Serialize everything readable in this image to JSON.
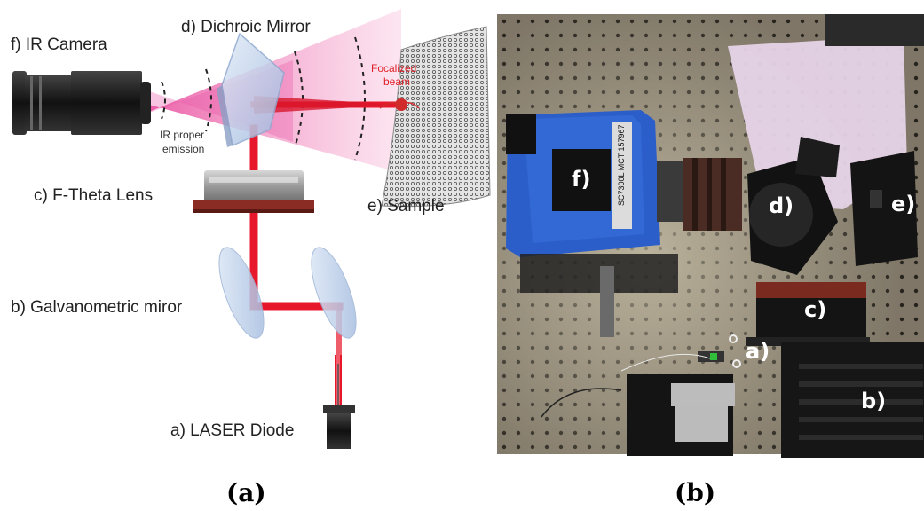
{
  "panel_a": {
    "labels": {
      "camera": "f) IR Camera",
      "dichroic": "d) Dichroic Mirror",
      "ftheta": "c) F-Theta Lens",
      "sample": "e) Sample",
      "galvo": "b) Galvanometric miror",
      "laser": "a) LASER Diode"
    },
    "annotations": {
      "focalized_line1": "Focalized",
      "focalized_line2": "beam",
      "ir_line1": "IR proper",
      "ir_line2": "emission"
    },
    "caption": "(a)"
  },
  "panel_b": {
    "labels": {
      "f": "f)",
      "d": "d)",
      "e": "e)",
      "c": "c)",
      "a": "a)",
      "b": "b)"
    },
    "camera_text": "SC7300L MCT 157967",
    "caption": "(b)"
  },
  "colors": {
    "laser_beam": "#e8182c",
    "ir_cone": "#f07ab8",
    "camera_body": "#2b5ec9",
    "breadboard": "#8a8170"
  }
}
